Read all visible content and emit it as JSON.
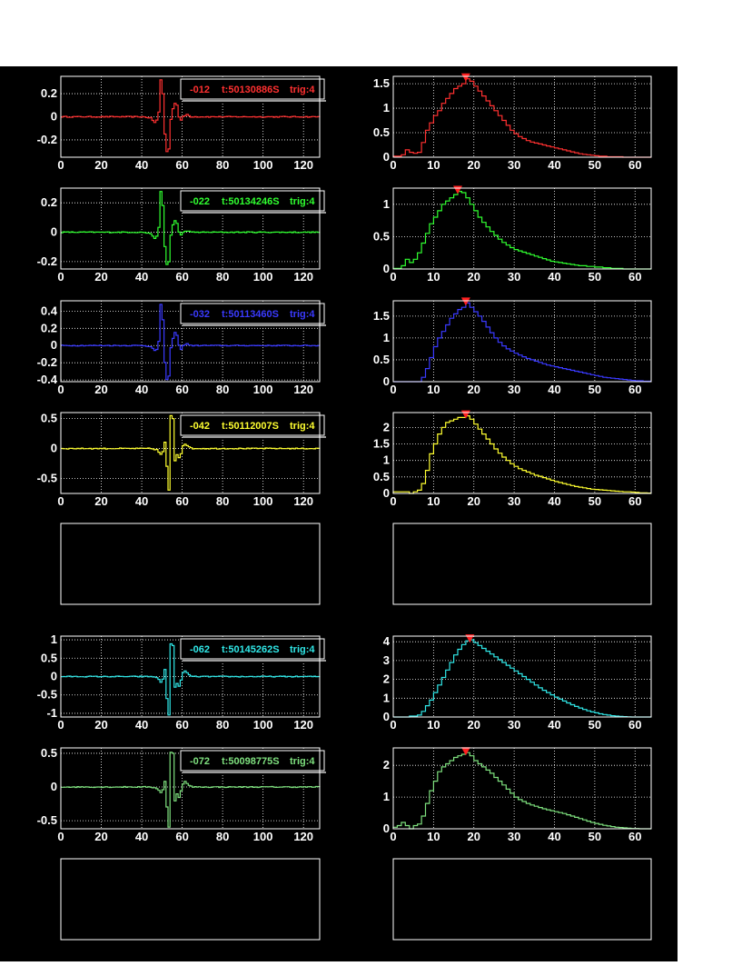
{
  "chart_data": [
    {
      "type": "line",
      "panel": "waveform",
      "color": "#ff3030",
      "xlim": [
        0,
        128
      ],
      "ylim": [
        -0.35,
        0.35
      ],
      "xticks": [
        0,
        20,
        40,
        60,
        80,
        100,
        120
      ],
      "yticks": [
        -0.2,
        0,
        0.2
      ],
      "ytick_labels": [
        "-0.2",
        "0",
        "0.2"
      ],
      "legend": {
        "channel": "-012",
        "time": "t:50130886S",
        "trig": "trig:4"
      },
      "pulse": {
        "center": 50,
        "amplitude": 0.33,
        "sign": 1,
        "shape": [
          [
            40,
            0
          ],
          [
            44,
            -0.01
          ],
          [
            46,
            -0.05
          ],
          [
            47,
            -0.03
          ],
          [
            48,
            0.04
          ],
          [
            49,
            0.32
          ],
          [
            50,
            0.2
          ],
          [
            51,
            -0.15
          ],
          [
            52,
            -0.3
          ],
          [
            53,
            -0.28
          ],
          [
            54,
            -0.02
          ],
          [
            55,
            0.07
          ],
          [
            56,
            0.12
          ],
          [
            57,
            0.1
          ],
          [
            58,
            0.0
          ],
          [
            59,
            -0.03
          ],
          [
            60,
            0.0
          ],
          [
            62,
            0.02
          ],
          [
            64,
            0.0
          ],
          [
            128,
            0.0
          ]
        ]
      }
    },
    {
      "type": "step",
      "panel": "spectrum",
      "color": "#ff3030",
      "xlim": [
        0,
        64
      ],
      "ylim": [
        0,
        1.65
      ],
      "xticks": [
        0,
        10,
        20,
        30,
        40,
        50,
        60
      ],
      "yticks": [
        0,
        0.5,
        1,
        1.5
      ],
      "ytick_labels": [
        "0",
        "0.5",
        "1",
        "1.5"
      ],
      "marker_x": 18,
      "peak": 1.6,
      "values": [
        0.02,
        0.02,
        0.05,
        0.15,
        0.1,
        0.08,
        0.1,
        0.3,
        0.55,
        0.7,
        0.85,
        0.95,
        1.1,
        1.2,
        1.3,
        1.4,
        1.45,
        1.5,
        1.6,
        1.55,
        1.45,
        1.35,
        1.25,
        1.15,
        1.05,
        0.95,
        0.85,
        0.75,
        0.65,
        0.55,
        0.48,
        0.42,
        0.38,
        0.34,
        0.31,
        0.29,
        0.27,
        0.25,
        0.23,
        0.21,
        0.19,
        0.17,
        0.15,
        0.13,
        0.11,
        0.09,
        0.07,
        0.06,
        0.05,
        0.04,
        0.03,
        0.02,
        0.02,
        0.01,
        0.01,
        0.01,
        0.01,
        0.0,
        0.0,
        0.0,
        0.0,
        0.0,
        0.0,
        0.0
      ]
    },
    {
      "type": "line",
      "panel": "waveform",
      "color": "#30ff30",
      "xlim": [
        0,
        128
      ],
      "ylim": [
        -0.25,
        0.3
      ],
      "xticks": [
        0,
        20,
        40,
        60,
        80,
        100,
        120
      ],
      "yticks": [
        -0.2,
        0,
        0.2
      ],
      "ytick_labels": [
        "-0.2",
        "0",
        "0.2"
      ],
      "legend": {
        "channel": "-022",
        "time": "t:50134246S",
        "trig": "trig:4"
      },
      "pulse": {
        "shape": [
          [
            40,
            0
          ],
          [
            44,
            -0.01
          ],
          [
            46,
            -0.04
          ],
          [
            47,
            -0.03
          ],
          [
            48,
            0.03
          ],
          [
            49,
            0.28
          ],
          [
            50,
            0.18
          ],
          [
            51,
            -0.1
          ],
          [
            52,
            -0.22
          ],
          [
            53,
            -0.2
          ],
          [
            54,
            -0.02
          ],
          [
            55,
            0.05
          ],
          [
            56,
            0.08
          ],
          [
            57,
            0.06
          ],
          [
            58,
            0.0
          ],
          [
            59,
            -0.02
          ],
          [
            60,
            0.0
          ],
          [
            62,
            0.01
          ],
          [
            64,
            0.0
          ],
          [
            128,
            0.0
          ]
        ]
      }
    },
    {
      "type": "step",
      "panel": "spectrum",
      "color": "#30ff30",
      "xlim": [
        0,
        64
      ],
      "ylim": [
        0,
        1.25
      ],
      "xticks": [
        0,
        10,
        20,
        30,
        40,
        50,
        60
      ],
      "yticks": [
        0,
        0.5,
        1
      ],
      "ytick_labels": [
        "0",
        "0.5",
        "1"
      ],
      "marker_x": 16,
      "peak": 1.2,
      "values": [
        0.01,
        0.01,
        0.05,
        0.15,
        0.1,
        0.15,
        0.25,
        0.4,
        0.55,
        0.7,
        0.8,
        0.9,
        1.0,
        1.05,
        1.1,
        1.15,
        1.2,
        1.18,
        1.1,
        1.0,
        0.9,
        0.8,
        0.72,
        0.65,
        0.58,
        0.52,
        0.46,
        0.41,
        0.37,
        0.33,
        0.3,
        0.28,
        0.26,
        0.24,
        0.22,
        0.2,
        0.18,
        0.16,
        0.14,
        0.12,
        0.11,
        0.1,
        0.09,
        0.08,
        0.07,
        0.06,
        0.05,
        0.05,
        0.04,
        0.04,
        0.03,
        0.03,
        0.02,
        0.02,
        0.01,
        0.01,
        0.01,
        0.0,
        0.0,
        0.0,
        0.0,
        0.0,
        0.0,
        0.0
      ]
    },
    {
      "type": "line",
      "panel": "waveform",
      "color": "#3a3aff",
      "xlim": [
        0,
        128
      ],
      "ylim": [
        -0.42,
        0.52
      ],
      "xticks": [
        0,
        20,
        40,
        60,
        80,
        100,
        120
      ],
      "yticks": [
        -0.4,
        -0.2,
        0,
        0.2,
        0.4
      ],
      "ytick_labels": [
        "-0.4",
        "-0.2",
        "0",
        "0.2",
        "0.4"
      ],
      "legend": {
        "channel": "-032",
        "time": "t:50113460S",
        "trig": "trig:4"
      },
      "pulse": {
        "shape": [
          [
            40,
            0
          ],
          [
            44,
            -0.01
          ],
          [
            46,
            -0.06
          ],
          [
            47,
            -0.05
          ],
          [
            48,
            0.05
          ],
          [
            49,
            0.48
          ],
          [
            50,
            0.3
          ],
          [
            51,
            -0.2
          ],
          [
            52,
            -0.4
          ],
          [
            53,
            -0.36
          ],
          [
            54,
            -0.02
          ],
          [
            55,
            0.08
          ],
          [
            56,
            0.15
          ],
          [
            57,
            0.12
          ],
          [
            58,
            0.0
          ],
          [
            59,
            -0.04
          ],
          [
            60,
            0.0
          ],
          [
            62,
            0.02
          ],
          [
            64,
            0.0
          ],
          [
            128,
            0.0
          ]
        ]
      }
    },
    {
      "type": "step",
      "panel": "spectrum",
      "color": "#3a3aff",
      "xlim": [
        0,
        64
      ],
      "ylim": [
        0,
        1.85
      ],
      "xticks": [
        0,
        10,
        20,
        30,
        40,
        50,
        60
      ],
      "yticks": [
        0,
        0.5,
        1,
        1.5
      ],
      "ytick_labels": [
        "0",
        "0.5",
        "1",
        "1.5"
      ],
      "marker_x": 18,
      "peak": 1.8,
      "values": [
        0.0,
        0.0,
        0.0,
        0.0,
        0.0,
        0.0,
        0.0,
        0.1,
        0.3,
        0.55,
        0.8,
        1.0,
        1.15,
        1.3,
        1.45,
        1.55,
        1.65,
        1.7,
        1.8,
        1.7,
        1.6,
        1.5,
        1.38,
        1.25,
        1.12,
        1.0,
        0.9,
        0.82,
        0.75,
        0.7,
        0.65,
        0.61,
        0.57,
        0.53,
        0.5,
        0.47,
        0.44,
        0.41,
        0.38,
        0.36,
        0.34,
        0.32,
        0.3,
        0.28,
        0.26,
        0.24,
        0.22,
        0.2,
        0.18,
        0.16,
        0.14,
        0.12,
        0.1,
        0.09,
        0.08,
        0.07,
        0.06,
        0.05,
        0.04,
        0.03,
        0.02,
        0.02,
        0.01,
        0.01
      ]
    },
    {
      "type": "line",
      "panel": "waveform",
      "color": "#ffff30",
      "xlim": [
        0,
        128
      ],
      "ylim": [
        -0.75,
        0.6
      ],
      "xticks": [
        0,
        20,
        40,
        60,
        80,
        100,
        120
      ],
      "yticks": [
        -0.5,
        0,
        0.5
      ],
      "ytick_labels": [
        "-0.5",
        "0",
        "0.5"
      ],
      "legend": {
        "channel": "-042",
        "time": "t:50112007S",
        "trig": "trig:4"
      },
      "pulse": {
        "shape": [
          [
            44,
            0
          ],
          [
            47,
            -0.02
          ],
          [
            49,
            -0.1
          ],
          [
            50,
            -0.05
          ],
          [
            51,
            0.1
          ],
          [
            52,
            -0.3
          ],
          [
            53,
            -0.7
          ],
          [
            54,
            0.55
          ],
          [
            55,
            0.5
          ],
          [
            56,
            -0.2
          ],
          [
            57,
            -0.1
          ],
          [
            58,
            -0.15
          ],
          [
            59,
            -0.08
          ],
          [
            60,
            0.05
          ],
          [
            61,
            0.08
          ],
          [
            62,
            0.05
          ],
          [
            63,
            0.02
          ],
          [
            65,
            0.0
          ],
          [
            128,
            0.0
          ]
        ]
      }
    },
    {
      "type": "step",
      "panel": "spectrum",
      "color": "#ffff30",
      "xlim": [
        0,
        64
      ],
      "ylim": [
        0,
        2.45
      ],
      "xticks": [
        0,
        10,
        20,
        30,
        40,
        50,
        60
      ],
      "yticks": [
        0,
        0.5,
        1,
        1.5,
        2
      ],
      "ytick_labels": [
        "0",
        "0.5",
        "1",
        "1.5",
        "2"
      ],
      "marker_x": 18,
      "peak": 2.35,
      "values": [
        0.05,
        0.05,
        0.05,
        0.05,
        0.0,
        0.05,
        0.1,
        0.3,
        0.7,
        1.2,
        1.5,
        1.8,
        2.0,
        2.15,
        2.2,
        2.25,
        2.3,
        2.3,
        2.35,
        2.25,
        2.1,
        1.95,
        1.8,
        1.65,
        1.5,
        1.35,
        1.22,
        1.1,
        1.0,
        0.9,
        0.82,
        0.75,
        0.7,
        0.65,
        0.6,
        0.55,
        0.52,
        0.48,
        0.44,
        0.4,
        0.36,
        0.33,
        0.3,
        0.27,
        0.24,
        0.21,
        0.19,
        0.17,
        0.15,
        0.13,
        0.12,
        0.11,
        0.1,
        0.09,
        0.08,
        0.07,
        0.06,
        0.05,
        0.05,
        0.04,
        0.03,
        0.02,
        0.02,
        0.01
      ]
    },
    {
      "type": "empty",
      "panel": "waveform"
    },
    {
      "type": "empty",
      "panel": "spectrum"
    },
    {
      "type": "line",
      "panel": "waveform",
      "color": "#30e8e8",
      "xlim": [
        0,
        128
      ],
      "ylim": [
        -1.1,
        1.1
      ],
      "xticks": [
        0,
        20,
        40,
        60,
        80,
        100,
        120
      ],
      "yticks": [
        -1,
        -0.5,
        0,
        0.5,
        1
      ],
      "ytick_labels": [
        "-1",
        "-0.5",
        "0",
        "0.5",
        "1"
      ],
      "legend": {
        "channel": "-062",
        "time": "t:50145262S",
        "trig": "trig:4"
      },
      "pulse": {
        "shape": [
          [
            44,
            0
          ],
          [
            47,
            -0.02
          ],
          [
            49,
            -0.15
          ],
          [
            50,
            -0.08
          ],
          [
            51,
            0.2
          ],
          [
            52,
            -0.6
          ],
          [
            53,
            -1.05
          ],
          [
            54,
            0.9
          ],
          [
            55,
            0.85
          ],
          [
            56,
            -0.3
          ],
          [
            57,
            -0.2
          ],
          [
            58,
            -0.25
          ],
          [
            59,
            -0.1
          ],
          [
            60,
            0.1
          ],
          [
            61,
            0.15
          ],
          [
            62,
            0.1
          ],
          [
            63,
            0.04
          ],
          [
            65,
            0.0
          ],
          [
            128,
            0.0
          ]
        ]
      }
    },
    {
      "type": "step",
      "panel": "spectrum",
      "color": "#30e8e8",
      "xlim": [
        0,
        64
      ],
      "ylim": [
        0,
        4.3
      ],
      "xticks": [
        0,
        10,
        20,
        30,
        40,
        50,
        60
      ],
      "yticks": [
        0,
        1,
        2,
        3,
        4
      ],
      "ytick_labels": [
        "0",
        "1",
        "2",
        "3",
        "4"
      ],
      "marker_x": 19,
      "peak": 4.1,
      "values": [
        0.0,
        0.0,
        0.0,
        0.0,
        0.05,
        0.05,
        0.1,
        0.3,
        0.6,
        0.9,
        1.3,
        1.7,
        2.1,
        2.5,
        2.9,
        3.3,
        3.6,
        3.85,
        4.05,
        4.1,
        3.95,
        3.8,
        3.65,
        3.5,
        3.35,
        3.2,
        3.05,
        2.9,
        2.75,
        2.6,
        2.45,
        2.3,
        2.15,
        2.0,
        1.85,
        1.7,
        1.55,
        1.42,
        1.3,
        1.18,
        1.06,
        0.95,
        0.85,
        0.75,
        0.65,
        0.56,
        0.48,
        0.4,
        0.33,
        0.27,
        0.22,
        0.17,
        0.13,
        0.1,
        0.07,
        0.05,
        0.03,
        0.02,
        0.01,
        0.0,
        0.0,
        0.0,
        0.0,
        0.0
      ]
    },
    {
      "type": "line",
      "panel": "waveform",
      "color": "#7ee07e",
      "xlim": [
        0,
        128
      ],
      "ylim": [
        -0.62,
        0.58
      ],
      "xticks": [
        0,
        20,
        40,
        60,
        80,
        100,
        120
      ],
      "yticks": [
        -0.5,
        0,
        0.5
      ],
      "ytick_labels": [
        "-0.5",
        "0",
        "0.5"
      ],
      "legend": {
        "channel": "-072",
        "time": "t:50098775S",
        "trig": "trig:4"
      },
      "pulse": {
        "shape": [
          [
            44,
            0
          ],
          [
            47,
            -0.02
          ],
          [
            49,
            -0.08
          ],
          [
            50,
            -0.04
          ],
          [
            51,
            0.08
          ],
          [
            52,
            -0.3
          ],
          [
            53,
            -0.6
          ],
          [
            54,
            0.52
          ],
          [
            55,
            0.5
          ],
          [
            56,
            -0.2
          ],
          [
            57,
            -0.1
          ],
          [
            58,
            -0.15
          ],
          [
            59,
            -0.06
          ],
          [
            60,
            0.05
          ],
          [
            61,
            0.08
          ],
          [
            62,
            0.05
          ],
          [
            63,
            0.02
          ],
          [
            65,
            0.0
          ],
          [
            128,
            0.0
          ]
        ]
      }
    },
    {
      "type": "step",
      "panel": "spectrum",
      "color": "#7ee07e",
      "xlim": [
        0,
        64
      ],
      "ylim": [
        0,
        2.55
      ],
      "xticks": [
        0,
        10,
        20,
        30,
        40,
        50,
        60
      ],
      "yticks": [
        0,
        1,
        2
      ],
      "ytick_labels": [
        "0",
        "1",
        "2"
      ],
      "marker_x": 18,
      "peak": 2.4,
      "values": [
        0.05,
        0.1,
        0.2,
        0.1,
        0.0,
        0.1,
        0.15,
        0.4,
        0.8,
        1.2,
        1.5,
        1.8,
        1.95,
        2.05,
        2.15,
        2.25,
        2.3,
        2.35,
        2.4,
        2.3,
        2.15,
        2.05,
        1.95,
        1.85,
        1.75,
        1.62,
        1.5,
        1.38,
        1.25,
        1.12,
        1.0,
        0.92,
        0.86,
        0.8,
        0.75,
        0.71,
        0.67,
        0.63,
        0.6,
        0.57,
        0.54,
        0.51,
        0.48,
        0.44,
        0.4,
        0.36,
        0.32,
        0.28,
        0.24,
        0.2,
        0.17,
        0.14,
        0.11,
        0.09,
        0.07,
        0.05,
        0.04,
        0.03,
        0.02,
        0.01,
        0.01,
        0.0,
        0.0,
        0.0
      ]
    },
    {
      "type": "empty",
      "panel": "waveform"
    },
    {
      "type": "empty",
      "panel": "spectrum"
    }
  ]
}
